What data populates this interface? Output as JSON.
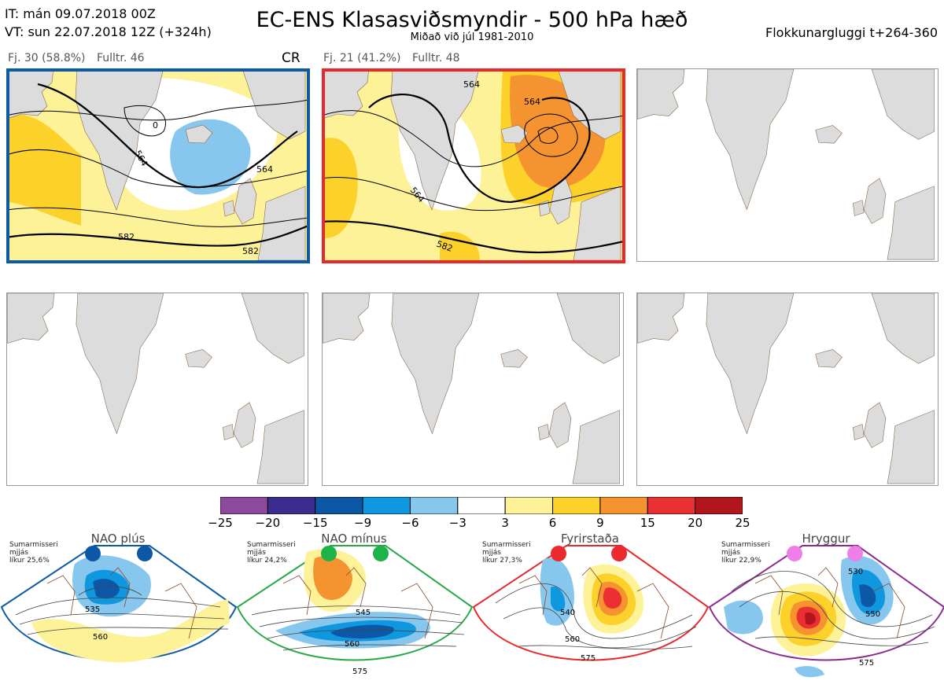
{
  "header": {
    "line1": "IT: mán 09.07.2018 00Z",
    "line2": "VT: sun 22.07.2018 12Z  (+324h)",
    "title": "EC-ENS Klasasviðsmyndir - 500 hPa hæð",
    "subtitle": "Miðað við júl 1981-2010",
    "window": "Flokkunargluggi t+264-360"
  },
  "panels": [
    {
      "count": "Fj. 30 (58.8%)",
      "representative": "Fulltr. 46",
      "tag": "CR",
      "border_color": "#0b5aa3",
      "contour_labels": [
        "564",
        "564",
        "582",
        "582",
        "0"
      ]
    },
    {
      "count": "Fj. 21 (41.2%)",
      "representative": "Fulltr. 48",
      "tag": "",
      "border_color": "#e8292b",
      "contour_labels": [
        "564",
        "564",
        "564",
        "582"
      ]
    }
  ],
  "colorbar": {
    "ticks": [
      "−25",
      "−20",
      "−15",
      "−9",
      "−6",
      "−3",
      "3",
      "6",
      "9",
      "15",
      "20",
      "25"
    ],
    "colors": [
      "#8d4a9c",
      "#3a2d8f",
      "#0d58a6",
      "#0f97df",
      "#87c7ed",
      "#ffffff",
      "#fdf297",
      "#fcd22a",
      "#f59331",
      "#ea3033",
      "#b1161c"
    ]
  },
  "clusters": [
    {
      "name": "NAO plús",
      "season": "Sumarmisseri",
      "smoothing": "mjjás",
      "probability": "líkur 25,6%",
      "color": "#0b5aa3",
      "dot_color": "#0d58a6",
      "contour_labels": [
        "535",
        "560"
      ]
    },
    {
      "name": "NAO mínus",
      "season": "Sumarmisseri",
      "smoothing": "mjjás",
      "probability": "líkur 24,2%",
      "color": "#2aa846",
      "dot_color": "#1db34a",
      "contour_labels": [
        "545",
        "560",
        "575"
      ]
    },
    {
      "name": "Fyrirstaða",
      "season": "Sumarmisseri",
      "smoothing": "mjjás",
      "probability": "líkur 27,3%",
      "color": "#e8292b",
      "dot_color": "#ea2a2e",
      "contour_labels": [
        "540",
        "560",
        "575"
      ]
    },
    {
      "name": "Hryggur",
      "season": "Sumarmisseri",
      "smoothing": "mjjás",
      "probability": "líkur 22,9%",
      "color": "#8b2a8f",
      "dot_color": "#ee7ee8",
      "contour_labels": [
        "530",
        "550",
        "575"
      ]
    }
  ]
}
